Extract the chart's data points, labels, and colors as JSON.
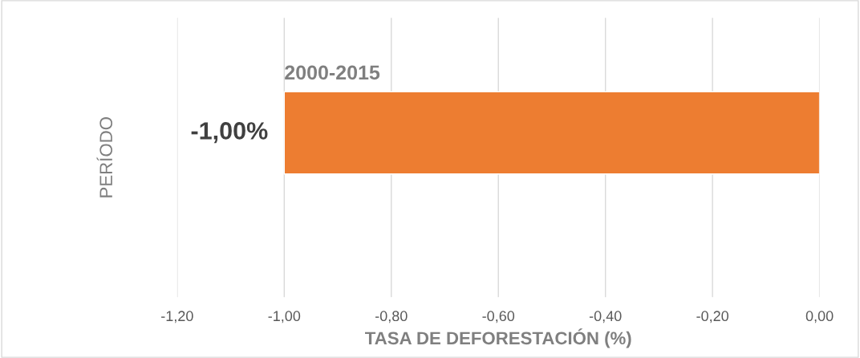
{
  "chart_data": {
    "type": "bar",
    "orientation": "horizontal",
    "categories": [
      "2000-2015"
    ],
    "values": [
      -1.0
    ],
    "color": "#ed7d31",
    "value_labels": [
      "-1,00%"
    ],
    "xlabel": "TASA DE DEFORESTACIÓN (%)",
    "ylabel": "PERÍODO",
    "xlim": [
      -1.2,
      0.0
    ],
    "xticks": [
      {
        "value": -1.2,
        "label": "-1,20"
      },
      {
        "value": -1.0,
        "label": "-1,00"
      },
      {
        "value": -0.8,
        "label": "-0,80"
      },
      {
        "value": -0.6,
        "label": "-0,60"
      },
      {
        "value": -0.4,
        "label": "-0,40"
      },
      {
        "value": -0.2,
        "label": "-0,20"
      },
      {
        "value": 0.0,
        "label": "0,00"
      }
    ],
    "grid": "x"
  }
}
